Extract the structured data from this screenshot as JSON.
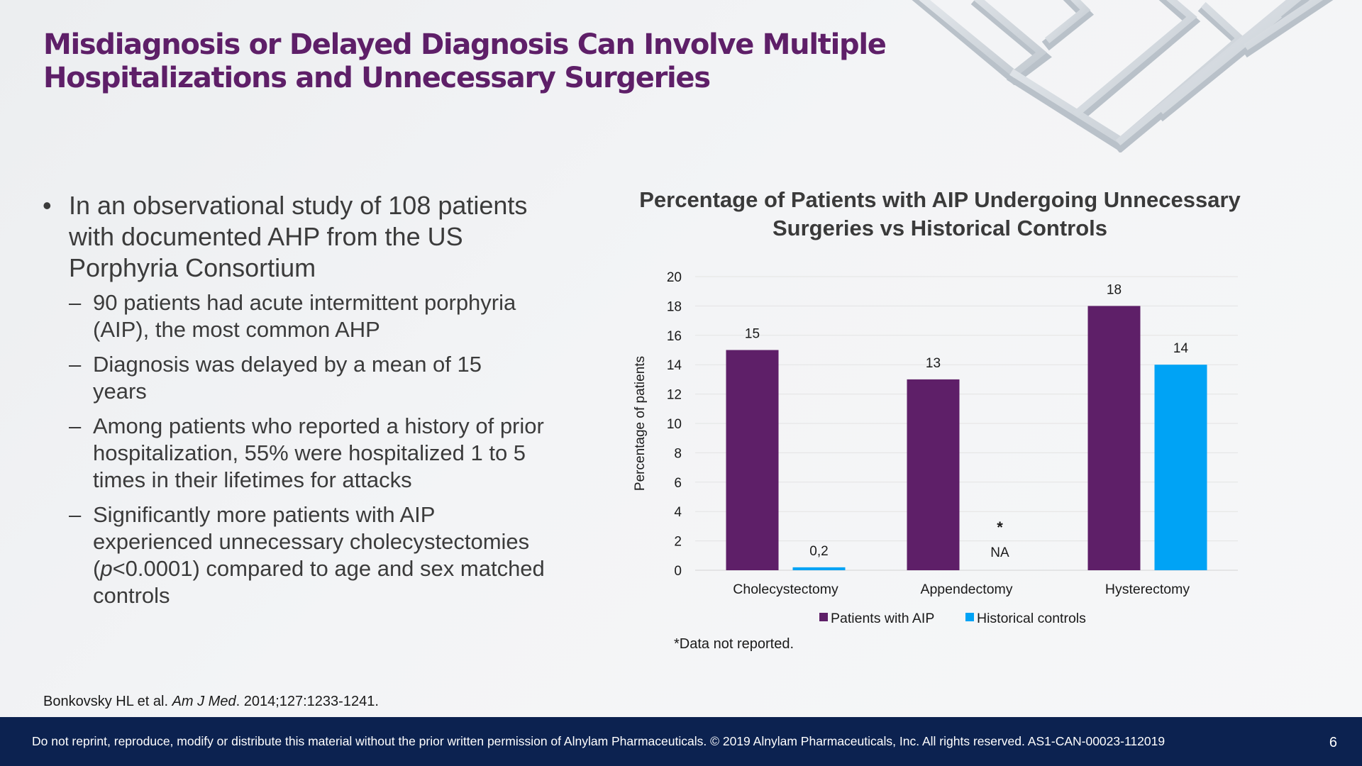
{
  "slide": {
    "title_line1": "Misdiagnosis or Delayed Diagnosis Can Involve Multiple",
    "title_line2": "Hospitalizations and Unnecessary Surgeries",
    "bullet_main": "In an observational study of 108 patients with documented AHP from the US Porphyria Consortium",
    "sub_bullets": [
      "90 patients had acute intermittent porphyria (AIP), the most common AHP",
      "Diagnosis was delayed by a mean of 15 years",
      "Among patients who reported a history of prior hospitalization, 55% were hospitalized 1 to 5 times in their lifetimes for attacks"
    ],
    "sub_bullet_4": {
      "before": "Significantly more patients with AIP experienced unnecessary cholecystectomies (",
      "italic": "p",
      "after": "<0.0001) compared to age and sex matched controls"
    },
    "bullet_glyph": "•",
    "dash_glyph": "–",
    "citation": {
      "authors": "Bonkovsky HL et al. ",
      "journal": "Am J Med",
      "details": ". 2014;127:1233-1241."
    },
    "footer": "Do not reprint, reproduce, modify or distribute this material without the prior written permission of Alnylam Pharmaceuticals. © 2019 Alnylam Pharmaceuticals, Inc. All rights reserved. AS1-CAN-00023-112019",
    "page_number": "6",
    "chart_note": "*Data not reported.",
    "decor_icon": "maze-image"
  },
  "chart_data": {
    "type": "bar",
    "title": "Percentage of Patients with AIP Undergoing Unnecessary Surgeries vs Historical Controls",
    "ylabel": "Percentage of patients",
    "xlabel": "",
    "categories": [
      "Cholecystectomy",
      "Appendectomy",
      "Hysterectomy"
    ],
    "series": [
      {
        "name": "Patients with AIP",
        "values": [
          15,
          13,
          18
        ],
        "labels": [
          "15",
          "13",
          "18"
        ],
        "color": "#5e1f68"
      },
      {
        "name": "Historical controls",
        "values": [
          0.2,
          null,
          14
        ],
        "labels": [
          "0,2",
          "NA",
          "14"
        ],
        "color": "#00a3f5"
      }
    ],
    "missing_marker": "*",
    "ylim": [
      0,
      20
    ],
    "yticks": [
      0,
      2,
      4,
      6,
      8,
      10,
      12,
      14,
      16,
      18,
      20
    ],
    "grid": true,
    "legend": "bottom"
  }
}
